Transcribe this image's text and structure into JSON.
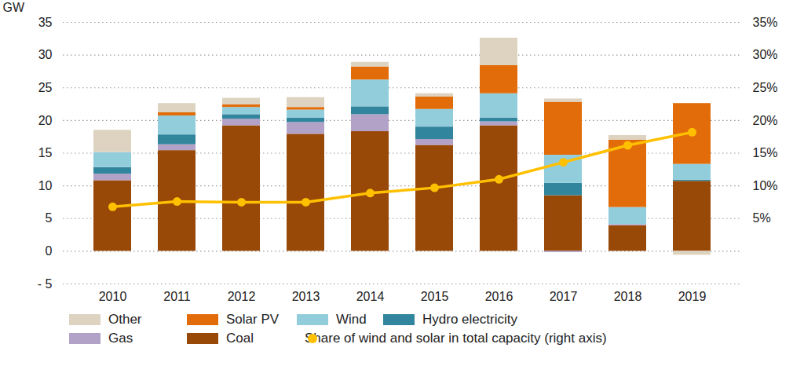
{
  "chart_data": {
    "type": "bar",
    "stacked": true,
    "grid": true,
    "y_label": "GW",
    "categories": [
      "2010",
      "2011",
      "2012",
      "2013",
      "2014",
      "2015",
      "2016",
      "2017",
      "2018",
      "2019"
    ],
    "ylim": [
      -5,
      35
    ],
    "yticks": [
      {
        "value": -5,
        "label": "- 5"
      },
      0,
      5,
      10,
      15,
      20,
      25,
      30,
      35
    ],
    "y2lim": [
      -5,
      35
    ],
    "y2ticks": [
      {
        "value": 5,
        "label": "5%"
      },
      {
        "value": 10,
        "label": "10%"
      },
      {
        "value": 15,
        "label": "15%"
      },
      {
        "value": 20,
        "label": "20%"
      },
      {
        "value": 25,
        "label": "25%"
      },
      {
        "value": 30,
        "label": "30%"
      },
      {
        "value": 35,
        "label": "35%"
      }
    ],
    "series": [
      {
        "name": "Coal",
        "color": "#984807",
        "values": [
          10.8,
          15.4,
          19.2,
          17.9,
          18.3,
          16.2,
          19.2,
          8.5,
          3.9,
          10.7
        ]
      },
      {
        "name": "Gas",
        "color": "#b3a2c7",
        "values": [
          1.0,
          0.9,
          1.0,
          1.8,
          2.6,
          0.9,
          0.6,
          -0.2,
          0.2,
          0
        ]
      },
      {
        "name": "Hydro electricity",
        "color": "#31859c",
        "values": [
          1.0,
          1.5,
          0.7,
          0.7,
          1.2,
          1.9,
          0.6,
          1.9,
          0,
          0.2
        ]
      },
      {
        "name": "Wind",
        "color": "#92cddc",
        "values": [
          2.3,
          2.9,
          1.1,
          1.2,
          4.1,
          2.7,
          3.7,
          4.3,
          2.6,
          2.4
        ]
      },
      {
        "name": "Solar PV",
        "color": "#e36c0a",
        "values": [
          0,
          0.5,
          0.4,
          0.4,
          2.0,
          1.9,
          4.3,
          8.1,
          10.3,
          9.3
        ]
      },
      {
        "name": "Other",
        "color": "#ddd3c0",
        "values": [
          3.4,
          1.4,
          1.0,
          1.5,
          0.7,
          0.5,
          4.2,
          0.5,
          0.7,
          -0.6
        ]
      },
      {
        "name": "Share of wind and solar in total capacity (right axis)",
        "type": "line",
        "axis": "y2",
        "marker": "circle",
        "color": "#ffc000",
        "values": [
          6.8,
          7.6,
          7.5,
          7.5,
          8.9,
          9.7,
          11.0,
          13.6,
          16.2,
          18.2
        ]
      }
    ]
  }
}
